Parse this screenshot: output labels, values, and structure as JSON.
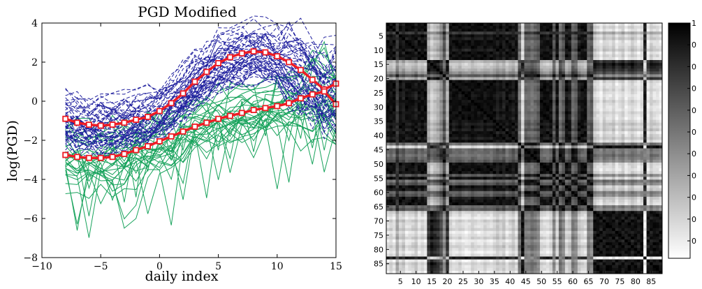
{
  "chart_data": [
    {
      "type": "line",
      "title": "PGD Modified",
      "xlabel": "daily index",
      "ylabel": "log(PGD)",
      "xlim": [
        -10,
        15
      ],
      "ylim": [
        -8,
        4
      ],
      "xticks": [
        "−10",
        "−5",
        "0",
        "5",
        "10",
        "15"
      ],
      "yticks": [
        "−8",
        "−6",
        "−4",
        "−2",
        "0",
        "2",
        "4"
      ],
      "grid": false,
      "legend": "none",
      "x": [
        -8,
        -7,
        -6,
        -5,
        -4,
        -3,
        -2,
        -1,
        0,
        1,
        2,
        3,
        4,
        5,
        6,
        7,
        8,
        9,
        10,
        11,
        12,
        13,
        14,
        15
      ],
      "series": [
        {
          "style": "bold red line with square markers (upper mean)",
          "color": "#ee1c24",
          "values": [
            -0.9,
            -1.1,
            -1.2,
            -1.25,
            -1.2,
            -1.1,
            -0.95,
            -0.8,
            -0.5,
            -0.1,
            0.4,
            1.0,
            1.5,
            1.95,
            2.25,
            2.45,
            2.55,
            2.5,
            2.3,
            2.0,
            1.6,
            1.1,
            0.6,
            0.9
          ]
        },
        {
          "style": "bold red line with square markers (lower mean)",
          "color": "#ee1c24",
          "values": [
            -2.75,
            -2.85,
            -2.9,
            -2.9,
            -2.85,
            -2.7,
            -2.5,
            -2.3,
            -2.05,
            -1.8,
            -1.55,
            -1.3,
            -1.1,
            -0.9,
            -0.75,
            -0.6,
            -0.45,
            -0.35,
            -0.25,
            -0.1,
            0.15,
            0.35,
            0.5,
            -0.15
          ]
        }
      ],
      "background_groups": [
        {
          "style": "dashed",
          "color": "#1f1f9e",
          "count": 55,
          "description_band": "upper"
        },
        {
          "style": "solid",
          "color": "#18a35c",
          "count": 30,
          "description_band": "lower"
        }
      ]
    },
    {
      "type": "heatmap",
      "colormap": "grayscale (white=0, black=1)",
      "size": 88,
      "xticks": [
        "5",
        "10",
        "15",
        "20",
        "25",
        "30",
        "35",
        "40",
        "45",
        "50",
        "55",
        "60",
        "65",
        "70",
        "75",
        "80",
        "85"
      ],
      "yticks": [
        "5",
        "10",
        "15",
        "20",
        "25",
        "30",
        "35",
        "40",
        "45",
        "50",
        "55",
        "60",
        "65",
        "70",
        "75",
        "80",
        "85"
      ],
      "colorbar_top": "1",
      "colorbar_ticks": [
        "0",
        "0",
        "0",
        "0",
        "0",
        "0",
        "0",
        "0",
        "0",
        "0"
      ],
      "row_profile": [
        0.9,
        0.85,
        0.9,
        0.7,
        0.85,
        0.8,
        0.9,
        0.88,
        0.85,
        0.8,
        0.9,
        0.85,
        0.9,
        0.3,
        0.2,
        0.25,
        0.3,
        0.4,
        0.6,
        0.3,
        0.85,
        0.9,
        0.88,
        0.85,
        0.9,
        0.92,
        0.9,
        0.85,
        0.88,
        0.9,
        0.9,
        0.85,
        0.88,
        0.9,
        0.85,
        0.8,
        0.85,
        0.8,
        0.9,
        0.85,
        0.8,
        0.88,
        0.5,
        0.15,
        0.55,
        0.55,
        0.5,
        0.55,
        0.6,
        0.85,
        0.88,
        0.9,
        0.85,
        0.6,
        0.85,
        0.5,
        0.6,
        0.85,
        0.8,
        0.55,
        0.6,
        0.8,
        0.85,
        0.88,
        0.55,
        0.6,
        0.2,
        0.15,
        0.1,
        0.2,
        0.15,
        0.15,
        0.2,
        0.1,
        0.15,
        0.2,
        0.1,
        0.15,
        0.2,
        0.15,
        0.1,
        0.15,
        0.95,
        0.1,
        0.2,
        0.15,
        0.15,
        0.1
      ]
    }
  ]
}
